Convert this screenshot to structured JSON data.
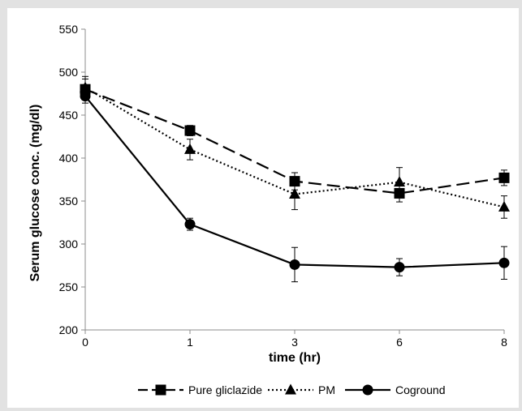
{
  "chart_data": {
    "type": "line",
    "title": "",
    "xlabel": "time (hr)",
    "ylabel": "Serum glucose conc.  (mg/dl)",
    "categories": [
      "0",
      "1",
      "3",
      "6",
      "8"
    ],
    "ylim": [
      200,
      550
    ],
    "yticks": [
      "200",
      "250",
      "300",
      "350",
      "400",
      "450",
      "500",
      "550"
    ],
    "grid": false,
    "legend_position": "bottom",
    "series": [
      {
        "name": "Pure gliclazide",
        "line_style": "dashed",
        "marker": "square",
        "values": [
          480,
          432,
          373,
          359,
          377
        ],
        "errors": [
          12,
          6,
          10,
          10,
          9
        ],
        "color": "#000000"
      },
      {
        "name": "PM",
        "line_style": "dotted",
        "marker": "triangle",
        "values": [
          482,
          410,
          358,
          372,
          343
        ],
        "errors": [
          13,
          12,
          18,
          17,
          13
        ],
        "color": "#000000"
      },
      {
        "name": "Coground",
        "line_style": "solid",
        "marker": "circle",
        "values": [
          472,
          323,
          276,
          273,
          278
        ],
        "errors": [
          8,
          7,
          20,
          10,
          19
        ],
        "color": "#000000"
      }
    ]
  }
}
